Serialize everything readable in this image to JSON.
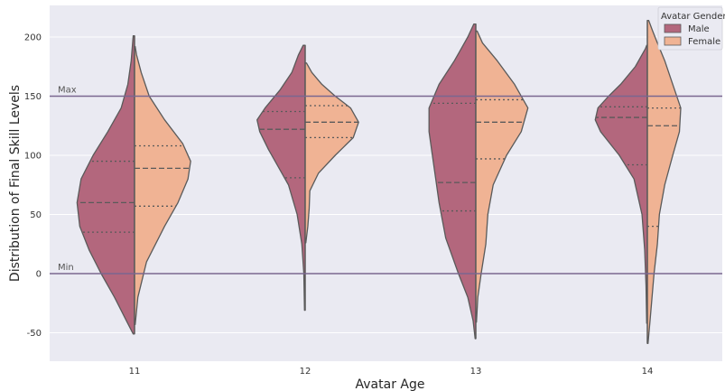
{
  "chart_data": {
    "type": "violin",
    "xlabel": "Avatar Age",
    "ylabel": "Distribution of Final Skill Levels",
    "categories": [
      "11",
      "12",
      "13",
      "14"
    ],
    "ylim": [
      -72,
      228
    ],
    "yticks": [
      -50,
      0,
      50,
      100,
      150,
      200
    ],
    "grid": true,
    "legend": {
      "title": "Avatar Gender",
      "position": "top-right",
      "entries": [
        "Male",
        "Female"
      ]
    },
    "reference_lines": [
      {
        "label": "Max",
        "value": 150
      },
      {
        "label": "Min",
        "value": 0
      }
    ],
    "series": [
      {
        "name": "Male",
        "color": "#b3677d",
        "violins": [
          {
            "min": -51,
            "max": 201,
            "q1": 35,
            "median": 60,
            "q3": 95,
            "profile": [
              [
                -51,
                0.02
              ],
              [
                -40,
                0.12
              ],
              [
                -20,
                0.3
              ],
              [
                0,
                0.5
              ],
              [
                20,
                0.68
              ],
              [
                40,
                0.82
              ],
              [
                60,
                0.86
              ],
              [
                80,
                0.8
              ],
              [
                100,
                0.62
              ],
              [
                120,
                0.4
              ],
              [
                140,
                0.2
              ],
              [
                160,
                0.1
              ],
              [
                180,
                0.05
              ],
              [
                201,
                0.02
              ]
            ]
          },
          {
            "min": -31,
            "max": 193,
            "q1": 81,
            "median": 122,
            "q3": 137,
            "profile": [
              [
                -31,
                0.01
              ],
              [
                0,
                0.02
              ],
              [
                25,
                0.05
              ],
              [
                50,
                0.12
              ],
              [
                75,
                0.25
              ],
              [
                90,
                0.4
              ],
              [
                105,
                0.55
              ],
              [
                120,
                0.68
              ],
              [
                130,
                0.72
              ],
              [
                140,
                0.6
              ],
              [
                155,
                0.38
              ],
              [
                170,
                0.2
              ],
              [
                185,
                0.1
              ],
              [
                193,
                0.03
              ]
            ]
          },
          {
            "min": -55,
            "max": 211,
            "q1": 53,
            "median": 77,
            "q3": 144,
            "profile": [
              [
                -55,
                0.01
              ],
              [
                -40,
                0.04
              ],
              [
                -20,
                0.12
              ],
              [
                0,
                0.26
              ],
              [
                30,
                0.45
              ],
              [
                60,
                0.55
              ],
              [
                80,
                0.6
              ],
              [
                100,
                0.65
              ],
              [
                120,
                0.7
              ],
              [
                140,
                0.7
              ],
              [
                160,
                0.55
              ],
              [
                180,
                0.32
              ],
              [
                200,
                0.12
              ],
              [
                211,
                0.03
              ]
            ]
          },
          {
            "min": -42,
            "max": 193,
            "q1": 92,
            "median": 132,
            "q3": 141,
            "profile": [
              [
                -42,
                0.01
              ],
              [
                -10,
                0.02
              ],
              [
                20,
                0.04
              ],
              [
                50,
                0.08
              ],
              [
                80,
                0.2
              ],
              [
                100,
                0.42
              ],
              [
                120,
                0.7
              ],
              [
                130,
                0.78
              ],
              [
                140,
                0.74
              ],
              [
                150,
                0.58
              ],
              [
                160,
                0.4
              ],
              [
                175,
                0.18
              ],
              [
                190,
                0.03
              ],
              [
                193,
                0.01
              ]
            ]
          }
        ]
      },
      {
        "name": "Female",
        "color": "#f0b394",
        "violins": [
          {
            "min": -43,
            "max": 192,
            "q1": 57,
            "median": 89,
            "q3": 108,
            "profile": [
              [
                -43,
                0.01
              ],
              [
                -20,
                0.05
              ],
              [
                10,
                0.18
              ],
              [
                40,
                0.45
              ],
              [
                60,
                0.65
              ],
              [
                80,
                0.8
              ],
              [
                95,
                0.84
              ],
              [
                110,
                0.72
              ],
              [
                130,
                0.45
              ],
              [
                150,
                0.22
              ],
              [
                170,
                0.1
              ],
              [
                185,
                0.03
              ],
              [
                192,
                0.01
              ]
            ]
          },
          {
            "min": 26,
            "max": 178,
            "q1": 115,
            "median": 128,
            "q3": 142,
            "profile": [
              [
                26,
                0.01
              ],
              [
                40,
                0.04
              ],
              [
                55,
                0.06
              ],
              [
                70,
                0.07
              ],
              [
                85,
                0.2
              ],
              [
                100,
                0.45
              ],
              [
                115,
                0.72
              ],
              [
                128,
                0.8
              ],
              [
                140,
                0.68
              ],
              [
                150,
                0.45
              ],
              [
                160,
                0.25
              ],
              [
                170,
                0.1
              ],
              [
                178,
                0.02
              ]
            ]
          },
          {
            "min": -41,
            "max": 205,
            "q1": 97,
            "median": 128,
            "q3": 147,
            "profile": [
              [
                -41,
                0.01
              ],
              [
                -20,
                0.03
              ],
              [
                0,
                0.08
              ],
              [
                25,
                0.15
              ],
              [
                50,
                0.18
              ],
              [
                75,
                0.26
              ],
              [
                100,
                0.46
              ],
              [
                120,
                0.68
              ],
              [
                140,
                0.78
              ],
              [
                160,
                0.58
              ],
              [
                180,
                0.32
              ],
              [
                195,
                0.1
              ],
              [
                205,
                0.02
              ]
            ]
          },
          {
            "min": -59,
            "max": 214,
            "q1": 40,
            "median": 125,
            "q3": 140,
            "profile": [
              [
                -59,
                0.01
              ],
              [
                -40,
                0.04
              ],
              [
                -20,
                0.07
              ],
              [
                0,
                0.1
              ],
              [
                25,
                0.15
              ],
              [
                50,
                0.18
              ],
              [
                75,
                0.26
              ],
              [
                100,
                0.38
              ],
              [
                120,
                0.48
              ],
              [
                140,
                0.5
              ],
              [
                160,
                0.38
              ],
              [
                180,
                0.26
              ],
              [
                195,
                0.15
              ],
              [
                205,
                0.08
              ],
              [
                214,
                0.02
              ]
            ]
          }
        ]
      }
    ]
  }
}
